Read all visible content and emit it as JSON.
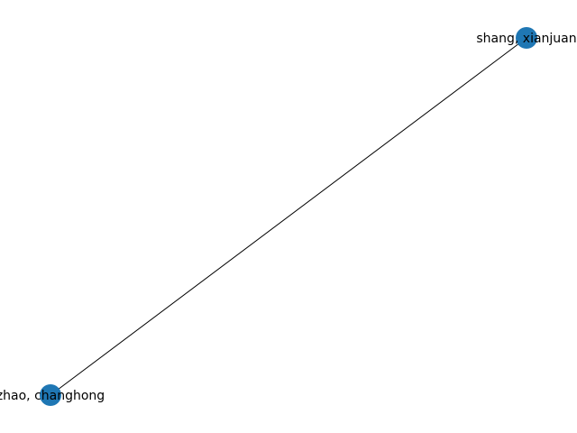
{
  "graph": {
    "nodes": [
      {
        "id": "a",
        "label": "shang, xianjuan"
      },
      {
        "id": "b",
        "label": "zhao, changhong"
      }
    ],
    "edges": [
      {
        "source": "a",
        "target": "b"
      }
    ],
    "colors": {
      "node": "#1f77b4",
      "edge": "#000000",
      "label": "#000000",
      "background": "#ffffff"
    }
  }
}
